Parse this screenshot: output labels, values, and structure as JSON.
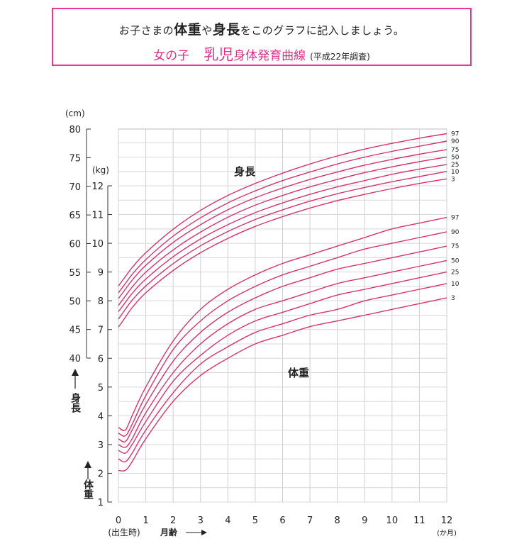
{
  "header": {
    "instruction_pre": "お子さまの",
    "instruction_weight": "体重",
    "instruction_ya": "や",
    "instruction_height": "身長",
    "instruction_post": "をこのグラフに記入しましょう。",
    "title_girl": "女の子",
    "title_infant": "乳児",
    "title_rest": "身体発育曲線",
    "title_note": "(平成22年調査)"
  },
  "chart_data": {
    "type": "line",
    "x": [
      0,
      0.25,
      0.5,
      1,
      2,
      3,
      4,
      5,
      6,
      7,
      8,
      9,
      10,
      11,
      12
    ],
    "x_ticks": [
      "0",
      "1",
      "2",
      "3",
      "4",
      "5",
      "6",
      "7",
      "8",
      "9",
      "10",
      "11",
      "12"
    ],
    "x_tick_values": [
      0,
      1,
      2,
      3,
      4,
      5,
      6,
      7,
      8,
      9,
      10,
      11,
      12
    ],
    "xlim": [
      0,
      12
    ],
    "x_unit": "(か月)",
    "x_birth_label": "(出生時)",
    "x_axis_label": "月齢",
    "height_axis": {
      "unit": "(cm)",
      "label": "身長",
      "ylim": [
        40,
        80
      ],
      "ticks": [
        40,
        45,
        50,
        55,
        60,
        65,
        70,
        75,
        80
      ]
    },
    "weight_axis": {
      "unit": "(kg)",
      "label": "体重",
      "ylim": [
        1,
        12
      ],
      "ticks": [
        1,
        2,
        3,
        4,
        5,
        6,
        7,
        8,
        9,
        10,
        11,
        12
      ]
    },
    "height_label": "身長",
    "weight_label": "体重",
    "line_color": "#d6336c",
    "height_series": [
      {
        "name": "97",
        "values": [
          52.6,
          54.2,
          55.8,
          58.4,
          62.5,
          65.8,
          68.4,
          70.5,
          72.3,
          73.9,
          75.3,
          76.5,
          77.5,
          78.4,
          79.2
        ]
      },
      {
        "name": "90",
        "values": [
          51.4,
          53.0,
          54.6,
          57.2,
          61.3,
          64.5,
          67.1,
          69.2,
          71.0,
          72.5,
          73.9,
          75.1,
          76.1,
          77.0,
          77.9
        ]
      },
      {
        "name": "75",
        "values": [
          50.4,
          52.0,
          53.6,
          56.2,
          60.2,
          63.3,
          65.9,
          68.0,
          69.7,
          71.2,
          72.5,
          73.7,
          74.7,
          75.6,
          76.4
        ]
      },
      {
        "name": "50",
        "values": [
          49.2,
          50.8,
          52.4,
          55.0,
          58.9,
          62.0,
          64.6,
          66.7,
          68.4,
          69.9,
          71.2,
          72.4,
          73.4,
          74.3,
          75.1
        ]
      },
      {
        "name": "25",
        "values": [
          48.1,
          49.7,
          51.3,
          53.8,
          57.7,
          60.8,
          63.3,
          65.4,
          67.1,
          68.6,
          69.9,
          71.0,
          72.1,
          73.0,
          73.8
        ]
      },
      {
        "name": "10",
        "values": [
          46.8,
          48.5,
          50.1,
          52.6,
          56.5,
          59.6,
          62.1,
          64.2,
          65.9,
          67.4,
          68.7,
          69.8,
          70.8,
          71.7,
          72.6
        ]
      },
      {
        "name": "3",
        "values": [
          45.4,
          47.1,
          48.8,
          51.4,
          55.3,
          58.4,
          60.9,
          63.0,
          64.7,
          66.2,
          67.5,
          68.6,
          69.6,
          70.5,
          71.3
        ]
      }
    ],
    "weight_series": [
      {
        "name": "97",
        "values": [
          3.6,
          3.5,
          4.0,
          5.0,
          6.6,
          7.7,
          8.4,
          8.9,
          9.3,
          9.6,
          9.9,
          10.2,
          10.5,
          10.7,
          10.9
        ]
      },
      {
        "name": "90",
        "values": [
          3.4,
          3.3,
          3.7,
          4.7,
          6.3,
          7.3,
          8.0,
          8.5,
          8.9,
          9.2,
          9.5,
          9.8,
          10.0,
          10.2,
          10.4
        ]
      },
      {
        "name": "75",
        "values": [
          3.2,
          3.1,
          3.5,
          4.4,
          5.9,
          6.9,
          7.6,
          8.1,
          8.5,
          8.8,
          9.1,
          9.3,
          9.5,
          9.7,
          9.9
        ]
      },
      {
        "name": "50",
        "values": [
          3.0,
          2.9,
          3.2,
          4.1,
          5.5,
          6.5,
          7.2,
          7.7,
          8.0,
          8.3,
          8.6,
          8.8,
          9.0,
          9.2,
          9.4
        ]
      },
      {
        "name": "25",
        "values": [
          2.8,
          2.7,
          3.0,
          3.8,
          5.2,
          6.1,
          6.8,
          7.3,
          7.6,
          7.9,
          8.2,
          8.4,
          8.6,
          8.8,
          9.0
        ]
      },
      {
        "name": "10",
        "values": [
          2.5,
          2.4,
          2.7,
          3.5,
          4.8,
          5.8,
          6.4,
          6.9,
          7.2,
          7.5,
          7.7,
          8.0,
          8.2,
          8.4,
          8.6
        ]
      },
      {
        "name": "3",
        "values": [
          2.1,
          2.1,
          2.4,
          3.2,
          4.5,
          5.4,
          6.0,
          6.5,
          6.8,
          7.1,
          7.3,
          7.5,
          7.7,
          7.9,
          8.1
        ]
      }
    ]
  }
}
